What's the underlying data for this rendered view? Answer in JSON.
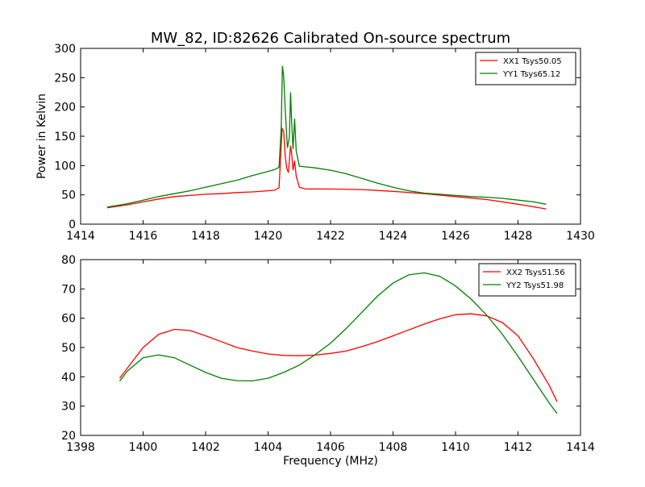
{
  "figure": {
    "title": "MW_82, ID:82626 Calibrated On-source spectrum",
    "ylabel": "Power in Kelvin",
    "xlabel": "Frequency (MHz)"
  },
  "colors": {
    "xx": "#ff0000",
    "yy": "#008000"
  },
  "chart_data": [
    {
      "type": "line",
      "xlim": [
        1414,
        1430
      ],
      "ylim": [
        0,
        300
      ],
      "xticks": [
        1414,
        1416,
        1418,
        1420,
        1422,
        1424,
        1426,
        1428,
        1430
      ],
      "yticks": [
        0,
        50,
        100,
        150,
        200,
        250,
        300
      ],
      "legend": "top-right",
      "ylabel": "Power in Kelvin",
      "series": [
        {
          "name": "XX1 Tsys50.05",
          "color": "#ff0000",
          "points": [
            [
              1414.85,
              28
            ],
            [
              1415.5,
              33
            ],
            [
              1416.0,
              38
            ],
            [
              1416.5,
              43
            ],
            [
              1417.0,
              47
            ],
            [
              1417.5,
              49
            ],
            [
              1418.0,
              51
            ],
            [
              1418.5,
              52
            ],
            [
              1419.0,
              54
            ],
            [
              1419.5,
              55
            ],
            [
              1420.0,
              57
            ],
            [
              1420.2,
              58
            ],
            [
              1420.35,
              62
            ],
            [
              1420.45,
              163
            ],
            [
              1420.5,
              158
            ],
            [
              1420.55,
              115
            ],
            [
              1420.6,
              95
            ],
            [
              1420.65,
              88
            ],
            [
              1420.72,
              134
            ],
            [
              1420.76,
              118
            ],
            [
              1420.8,
              92
            ],
            [
              1420.85,
              108
            ],
            [
              1420.9,
              82
            ],
            [
              1421.0,
              63
            ],
            [
              1421.2,
              60
            ],
            [
              1422.0,
              60
            ],
            [
              1423.0,
              59
            ],
            [
              1424.0,
              56
            ],
            [
              1425.0,
              52
            ],
            [
              1426.0,
              47
            ],
            [
              1427.0,
              42
            ],
            [
              1428.0,
              34
            ],
            [
              1428.9,
              26
            ]
          ]
        },
        {
          "name": "YY1 Tsys65.12",
          "color": "#008000",
          "points": [
            [
              1414.85,
              29
            ],
            [
              1415.5,
              35
            ],
            [
              1416.0,
              41
            ],
            [
              1416.5,
              47
            ],
            [
              1417.0,
              52
            ],
            [
              1417.5,
              57
            ],
            [
              1418.0,
              63
            ],
            [
              1418.5,
              69
            ],
            [
              1419.0,
              75
            ],
            [
              1419.5,
              83
            ],
            [
              1420.0,
              90
            ],
            [
              1420.2,
              93
            ],
            [
              1420.35,
              97
            ],
            [
              1420.42,
              165
            ],
            [
              1420.46,
              270
            ],
            [
              1420.5,
              252
            ],
            [
              1420.55,
              195
            ],
            [
              1420.62,
              130
            ],
            [
              1420.68,
              148
            ],
            [
              1420.72,
              225
            ],
            [
              1420.76,
              170
            ],
            [
              1420.8,
              128
            ],
            [
              1420.85,
              180
            ],
            [
              1420.9,
              125
            ],
            [
              1421.0,
              99
            ],
            [
              1421.5,
              96
            ],
            [
              1422.0,
              92
            ],
            [
              1422.5,
              86
            ],
            [
              1423.0,
              78
            ],
            [
              1423.5,
              70
            ],
            [
              1424.0,
              63
            ],
            [
              1424.5,
              57
            ],
            [
              1425.0,
              53
            ],
            [
              1425.5,
              51
            ],
            [
              1426.0,
              49
            ],
            [
              1426.5,
              47
            ],
            [
              1427.0,
              46
            ],
            [
              1427.5,
              44
            ],
            [
              1428.0,
              41
            ],
            [
              1428.5,
              38
            ],
            [
              1428.9,
              34
            ]
          ]
        }
      ]
    },
    {
      "type": "line",
      "xlim": [
        1398,
        1414
      ],
      "ylim": [
        20,
        80
      ],
      "xticks": [
        1398,
        1400,
        1402,
        1404,
        1406,
        1408,
        1410,
        1412,
        1414
      ],
      "yticks": [
        20,
        30,
        40,
        50,
        60,
        70,
        80
      ],
      "legend": "top-right",
      "xlabel": "Frequency (MHz)",
      "series": [
        {
          "name": "XX2 Tsys51.56",
          "color": "#ff0000",
          "points": [
            [
              1399.25,
              39.5
            ],
            [
              1399.5,
              43
            ],
            [
              1400.0,
              50
            ],
            [
              1400.5,
              54.5
            ],
            [
              1401.0,
              56.2
            ],
            [
              1401.5,
              55.8
            ],
            [
              1402.0,
              54
            ],
            [
              1402.5,
              52
            ],
            [
              1403.0,
              50
            ],
            [
              1403.5,
              48.8
            ],
            [
              1404.0,
              47.8
            ],
            [
              1404.5,
              47.3
            ],
            [
              1405.0,
              47.2
            ],
            [
              1405.5,
              47.4
            ],
            [
              1406.0,
              48
            ],
            [
              1406.5,
              48.8
            ],
            [
              1407.0,
              50.3
            ],
            [
              1407.5,
              52
            ],
            [
              1408.0,
              54
            ],
            [
              1408.5,
              56
            ],
            [
              1409.0,
              58
            ],
            [
              1409.5,
              59.8
            ],
            [
              1410.0,
              61.2
            ],
            [
              1410.5,
              61.5
            ],
            [
              1411.0,
              60.8
            ],
            [
              1411.5,
              58.5
            ],
            [
              1412.0,
              54
            ],
            [
              1412.5,
              46
            ],
            [
              1413.0,
              37
            ],
            [
              1413.25,
              31.5
            ]
          ]
        },
        {
          "name": "YY2 Tsys51.98",
          "color": "#008000",
          "points": [
            [
              1399.25,
              38.5
            ],
            [
              1399.5,
              42
            ],
            [
              1400.0,
              46.5
            ],
            [
              1400.5,
              47.5
            ],
            [
              1401.0,
              46.5
            ],
            [
              1401.5,
              44
            ],
            [
              1402.0,
              41.5
            ],
            [
              1402.5,
              39.5
            ],
            [
              1403.0,
              38.7
            ],
            [
              1403.5,
              38.6
            ],
            [
              1404.0,
              39.5
            ],
            [
              1404.5,
              41.5
            ],
            [
              1405.0,
              44
            ],
            [
              1405.5,
              47.5
            ],
            [
              1406.0,
              51.5
            ],
            [
              1406.5,
              56.5
            ],
            [
              1407.0,
              62
            ],
            [
              1407.5,
              67.5
            ],
            [
              1408.0,
              72
            ],
            [
              1408.5,
              74.8
            ],
            [
              1409.0,
              75.5
            ],
            [
              1409.5,
              74.3
            ],
            [
              1410.0,
              71
            ],
            [
              1410.5,
              66.5
            ],
            [
              1411.0,
              61
            ],
            [
              1411.5,
              54.5
            ],
            [
              1412.0,
              47
            ],
            [
              1412.5,
              39
            ],
            [
              1413.0,
              31
            ],
            [
              1413.25,
              27.5
            ]
          ]
        }
      ]
    }
  ]
}
